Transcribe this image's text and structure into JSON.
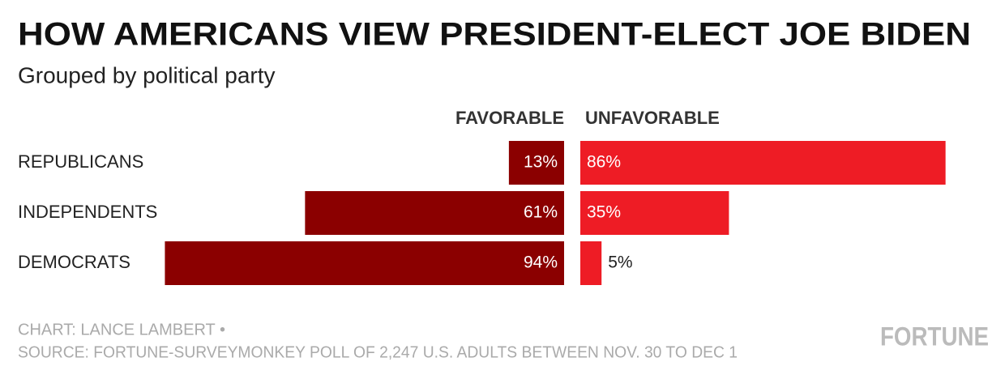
{
  "chart_data": {
    "type": "diverging-bar",
    "title": "HOW AMERICANS VIEW PRESIDENT-ELECT JOE BIDEN",
    "subtitle": "Grouped by political party",
    "categories": [
      "REPUBLICANS",
      "INDEPENDENTS",
      "DEMOCRATS"
    ],
    "series": [
      {
        "name": "FAVORABLE",
        "color": "#8b0000",
        "values": [
          13,
          61,
          94
        ],
        "value_labels": [
          "13%",
          "61%",
          "94%"
        ]
      },
      {
        "name": "UNFAVORABLE",
        "color": "#ee1c25",
        "values": [
          86,
          35,
          5
        ],
        "value_labels": [
          "86%",
          "35%",
          "5%"
        ]
      }
    ],
    "credit": "CHART: LANCE LAMBERT •",
    "source": "SOURCE: FORTUNE-SURVEYMONKEY POLL OF 2,247 U.S. ADULTS BETWEEN NOV. 30 TO DEC 1",
    "brand": "FORTUNE"
  }
}
